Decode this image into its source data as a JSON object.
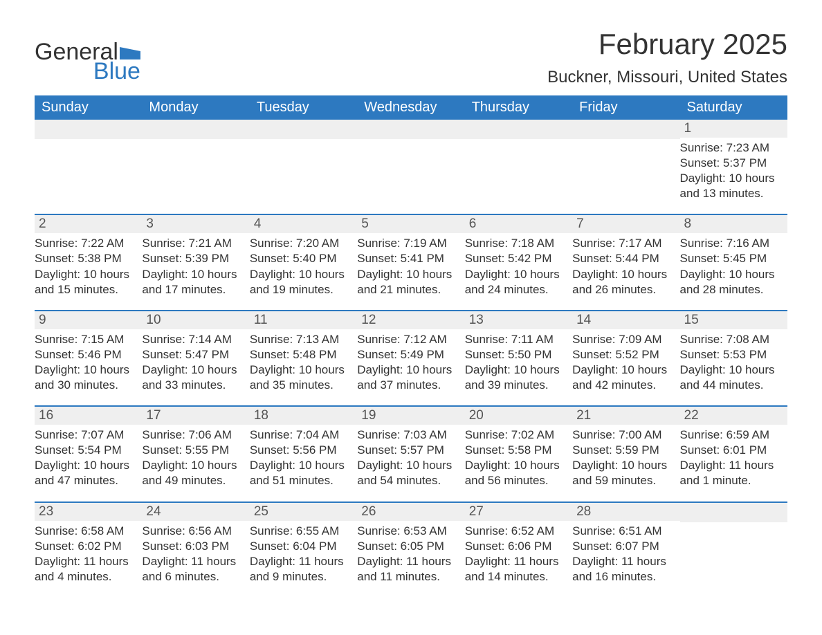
{
  "brand": {
    "line1": "General",
    "line2": "Blue"
  },
  "title": "February 2025",
  "location": "Buckner, Missouri, United States",
  "colors": {
    "header_bg": "#2d79c0",
    "header_text": "#ffffff",
    "accent": "#2d79c0",
    "daynum_bg": "#efefef",
    "text": "#333333",
    "page_bg": "#ffffff"
  },
  "weekdays": [
    "Sunday",
    "Monday",
    "Tuesday",
    "Wednesday",
    "Thursday",
    "Friday",
    "Saturday"
  ],
  "weeks": [
    [
      null,
      null,
      null,
      null,
      null,
      null,
      {
        "n": "1",
        "sunrise": "Sunrise: 7:23 AM",
        "sunset": "Sunset: 5:37 PM",
        "daylight": "Daylight: 10 hours and 13 minutes."
      }
    ],
    [
      {
        "n": "2",
        "sunrise": "Sunrise: 7:22 AM",
        "sunset": "Sunset: 5:38 PM",
        "daylight": "Daylight: 10 hours and 15 minutes."
      },
      {
        "n": "3",
        "sunrise": "Sunrise: 7:21 AM",
        "sunset": "Sunset: 5:39 PM",
        "daylight": "Daylight: 10 hours and 17 minutes."
      },
      {
        "n": "4",
        "sunrise": "Sunrise: 7:20 AM",
        "sunset": "Sunset: 5:40 PM",
        "daylight": "Daylight: 10 hours and 19 minutes."
      },
      {
        "n": "5",
        "sunrise": "Sunrise: 7:19 AM",
        "sunset": "Sunset: 5:41 PM",
        "daylight": "Daylight: 10 hours and 21 minutes."
      },
      {
        "n": "6",
        "sunrise": "Sunrise: 7:18 AM",
        "sunset": "Sunset: 5:42 PM",
        "daylight": "Daylight: 10 hours and 24 minutes."
      },
      {
        "n": "7",
        "sunrise": "Sunrise: 7:17 AM",
        "sunset": "Sunset: 5:44 PM",
        "daylight": "Daylight: 10 hours and 26 minutes."
      },
      {
        "n": "8",
        "sunrise": "Sunrise: 7:16 AM",
        "sunset": "Sunset: 5:45 PM",
        "daylight": "Daylight: 10 hours and 28 minutes."
      }
    ],
    [
      {
        "n": "9",
        "sunrise": "Sunrise: 7:15 AM",
        "sunset": "Sunset: 5:46 PM",
        "daylight": "Daylight: 10 hours and 30 minutes."
      },
      {
        "n": "10",
        "sunrise": "Sunrise: 7:14 AM",
        "sunset": "Sunset: 5:47 PM",
        "daylight": "Daylight: 10 hours and 33 minutes."
      },
      {
        "n": "11",
        "sunrise": "Sunrise: 7:13 AM",
        "sunset": "Sunset: 5:48 PM",
        "daylight": "Daylight: 10 hours and 35 minutes."
      },
      {
        "n": "12",
        "sunrise": "Sunrise: 7:12 AM",
        "sunset": "Sunset: 5:49 PM",
        "daylight": "Daylight: 10 hours and 37 minutes."
      },
      {
        "n": "13",
        "sunrise": "Sunrise: 7:11 AM",
        "sunset": "Sunset: 5:50 PM",
        "daylight": "Daylight: 10 hours and 39 minutes."
      },
      {
        "n": "14",
        "sunrise": "Sunrise: 7:09 AM",
        "sunset": "Sunset: 5:52 PM",
        "daylight": "Daylight: 10 hours and 42 minutes."
      },
      {
        "n": "15",
        "sunrise": "Sunrise: 7:08 AM",
        "sunset": "Sunset: 5:53 PM",
        "daylight": "Daylight: 10 hours and 44 minutes."
      }
    ],
    [
      {
        "n": "16",
        "sunrise": "Sunrise: 7:07 AM",
        "sunset": "Sunset: 5:54 PM",
        "daylight": "Daylight: 10 hours and 47 minutes."
      },
      {
        "n": "17",
        "sunrise": "Sunrise: 7:06 AM",
        "sunset": "Sunset: 5:55 PM",
        "daylight": "Daylight: 10 hours and 49 minutes."
      },
      {
        "n": "18",
        "sunrise": "Sunrise: 7:04 AM",
        "sunset": "Sunset: 5:56 PM",
        "daylight": "Daylight: 10 hours and 51 minutes."
      },
      {
        "n": "19",
        "sunrise": "Sunrise: 7:03 AM",
        "sunset": "Sunset: 5:57 PM",
        "daylight": "Daylight: 10 hours and 54 minutes."
      },
      {
        "n": "20",
        "sunrise": "Sunrise: 7:02 AM",
        "sunset": "Sunset: 5:58 PM",
        "daylight": "Daylight: 10 hours and 56 minutes."
      },
      {
        "n": "21",
        "sunrise": "Sunrise: 7:00 AM",
        "sunset": "Sunset: 5:59 PM",
        "daylight": "Daylight: 10 hours and 59 minutes."
      },
      {
        "n": "22",
        "sunrise": "Sunrise: 6:59 AM",
        "sunset": "Sunset: 6:01 PM",
        "daylight": "Daylight: 11 hours and 1 minute."
      }
    ],
    [
      {
        "n": "23",
        "sunrise": "Sunrise: 6:58 AM",
        "sunset": "Sunset: 6:02 PM",
        "daylight": "Daylight: 11 hours and 4 minutes."
      },
      {
        "n": "24",
        "sunrise": "Sunrise: 6:56 AM",
        "sunset": "Sunset: 6:03 PM",
        "daylight": "Daylight: 11 hours and 6 minutes."
      },
      {
        "n": "25",
        "sunrise": "Sunrise: 6:55 AM",
        "sunset": "Sunset: 6:04 PM",
        "daylight": "Daylight: 11 hours and 9 minutes."
      },
      {
        "n": "26",
        "sunrise": "Sunrise: 6:53 AM",
        "sunset": "Sunset: 6:05 PM",
        "daylight": "Daylight: 11 hours and 11 minutes."
      },
      {
        "n": "27",
        "sunrise": "Sunrise: 6:52 AM",
        "sunset": "Sunset: 6:06 PM",
        "daylight": "Daylight: 11 hours and 14 minutes."
      },
      {
        "n": "28",
        "sunrise": "Sunrise: 6:51 AM",
        "sunset": "Sunset: 6:07 PM",
        "daylight": "Daylight: 11 hours and 16 minutes."
      },
      null
    ]
  ]
}
